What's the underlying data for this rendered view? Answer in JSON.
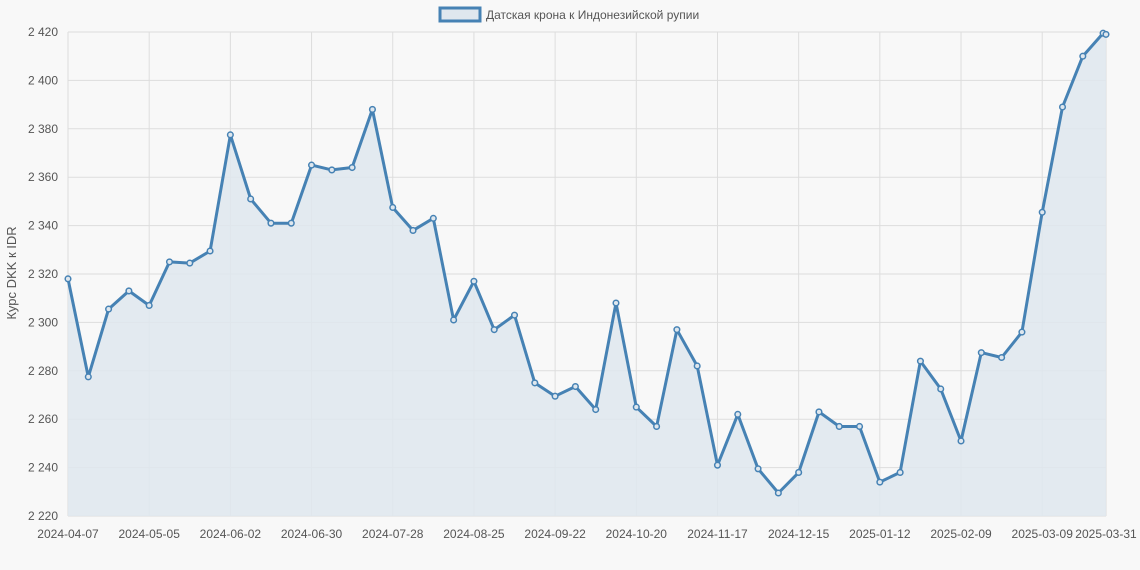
{
  "colors": {
    "line": "#4682b4",
    "fill": "#dfe7ee",
    "grid": "#dddddd",
    "background": "#f8f8f8",
    "text": "#555555"
  },
  "chart_data": {
    "type": "line",
    "title": "",
    "xlabel": "",
    "ylabel": "Курс DKK к IDR",
    "legend": {
      "position": "top-center",
      "entries": [
        "Датская крона к Индонезийской рупии"
      ]
    },
    "grid": true,
    "ylim": [
      2220,
      2420
    ],
    "y_ticks": [
      "2 220",
      "2 240",
      "2 260",
      "2 280",
      "2 300",
      "2 320",
      "2 340",
      "2 360",
      "2 380",
      "2 400",
      "2 420"
    ],
    "x_tick_labels": [
      "2024-04-07",
      "2024-05-05",
      "2024-06-02",
      "2024-06-30",
      "2024-07-28",
      "2024-08-25",
      "2024-09-22",
      "2024-10-20",
      "2024-11-17",
      "2024-12-15",
      "2025-01-12",
      "2025-02-09",
      "2025-03-09",
      "2025-03-31"
    ],
    "series": [
      {
        "name": "Датская крона к Индонезийской рупии",
        "x": [
          "2024-04-07",
          "2024-04-14",
          "2024-04-21",
          "2024-04-28",
          "2024-05-05",
          "2024-05-12",
          "2024-05-19",
          "2024-05-26",
          "2024-06-02",
          "2024-06-09",
          "2024-06-16",
          "2024-06-23",
          "2024-06-30",
          "2024-07-07",
          "2024-07-14",
          "2024-07-21",
          "2024-07-28",
          "2024-08-04",
          "2024-08-11",
          "2024-08-18",
          "2024-08-25",
          "2024-09-01",
          "2024-09-08",
          "2024-09-15",
          "2024-09-22",
          "2024-09-29",
          "2024-10-06",
          "2024-10-13",
          "2024-10-20",
          "2024-10-27",
          "2024-11-03",
          "2024-11-10",
          "2024-11-17",
          "2024-11-24",
          "2024-12-01",
          "2024-12-08",
          "2024-12-15",
          "2024-12-22",
          "2024-12-29",
          "2025-01-05",
          "2025-01-12",
          "2025-01-19",
          "2025-01-26",
          "2025-02-02",
          "2025-02-09",
          "2025-02-16",
          "2025-02-23",
          "2025-03-02",
          "2025-03-09",
          "2025-03-16",
          "2025-03-23",
          "2025-03-30",
          "2025-03-31"
        ],
        "values": [
          2318,
          2277.5,
          2305.5,
          2313,
          2307,
          2325,
          2324.5,
          2329.5,
          2377.5,
          2351,
          2341,
          2341,
          2365,
          2363,
          2364,
          2388,
          2347.5,
          2338,
          2343,
          2301,
          2317,
          2297,
          2303,
          2275,
          2269.5,
          2273.5,
          2264,
          2308,
          2265,
          2257,
          2297,
          2282,
          2241,
          2262,
          2239.5,
          2229.5,
          2238,
          2263,
          2257,
          2257,
          2234,
          2238,
          2284,
          2272.5,
          2251,
          2287.5,
          2285.5,
          2296,
          2345.5,
          2389,
          2410,
          2419.5,
          2419
        ]
      }
    ]
  }
}
